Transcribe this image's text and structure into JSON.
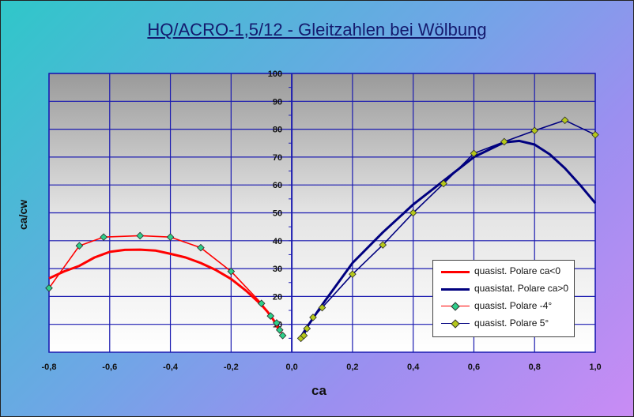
{
  "chart_data": {
    "type": "line",
    "title": "HQ/ACRO-1,5/12 - Gleitzahlen bei Wölbung",
    "xlabel": "ca",
    "ylabel": "ca/cw",
    "xlim": [
      -0.8,
      1.0
    ],
    "ylim": [
      0,
      100
    ],
    "x_ticks": [
      "-0,8",
      "-0,6",
      "-0,4",
      "-0,2",
      "0,0",
      "0,2",
      "0,4",
      "0,6",
      "0,8",
      "1,0"
    ],
    "y_ticks": [
      "10",
      "20",
      "30",
      "40",
      "50",
      "60",
      "70",
      "80",
      "90",
      "100"
    ],
    "grid": true,
    "legend_position": "bottom-right",
    "series": [
      {
        "name": "quasist. Polare ca<0",
        "color": "#ff0000",
        "marker": "none",
        "points": [
          [
            -0.8,
            26.5
          ],
          [
            -0.75,
            29
          ],
          [
            -0.7,
            31
          ],
          [
            -0.65,
            34
          ],
          [
            -0.6,
            36
          ],
          [
            -0.55,
            36.7
          ],
          [
            -0.5,
            36.8
          ],
          [
            -0.45,
            36.5
          ],
          [
            -0.4,
            35.3
          ],
          [
            -0.35,
            34
          ],
          [
            -0.3,
            32
          ],
          [
            -0.25,
            29.5
          ],
          [
            -0.2,
            26.3
          ],
          [
            -0.15,
            22
          ],
          [
            -0.1,
            17
          ],
          [
            -0.08,
            14.5
          ],
          [
            -0.06,
            11.5
          ],
          [
            -0.04,
            7.5
          ]
        ]
      },
      {
        "name": "quasistat. Polare ca>0",
        "color": "#00007f",
        "marker": "none",
        "points": [
          [
            0.03,
            5.5
          ],
          [
            0.05,
            9
          ],
          [
            0.1,
            17
          ],
          [
            0.2,
            32
          ],
          [
            0.3,
            43
          ],
          [
            0.4,
            53
          ],
          [
            0.5,
            61.5
          ],
          [
            0.6,
            70
          ],
          [
            0.7,
            75.3
          ],
          [
            0.75,
            75.8
          ],
          [
            0.8,
            74.5
          ],
          [
            0.85,
            71
          ],
          [
            0.9,
            66
          ],
          [
            0.95,
            60
          ],
          [
            1.0,
            53.5
          ]
        ]
      },
      {
        "name": "quasist. Polare -4°",
        "color": "#ff0000",
        "marker": "diamond",
        "marker_color": "#2ecf8a",
        "points": [
          [
            -0.8,
            23
          ],
          [
            -0.7,
            38.2
          ],
          [
            -0.62,
            41.3
          ],
          [
            -0.5,
            41.8
          ],
          [
            -0.4,
            41.3
          ],
          [
            -0.3,
            37.5
          ],
          [
            -0.2,
            29
          ],
          [
            -0.1,
            17.5
          ],
          [
            -0.07,
            13
          ],
          [
            -0.05,
            10.5
          ],
          [
            -0.04,
            8
          ],
          [
            -0.03,
            6
          ]
        ]
      },
      {
        "name": "quasist. Polare 5°",
        "color": "#00007f",
        "marker": "diamond",
        "marker_color": "#b5c81a",
        "points": [
          [
            0.03,
            5
          ],
          [
            0.04,
            6
          ],
          [
            0.05,
            8.5
          ],
          [
            0.07,
            12.5
          ],
          [
            0.1,
            16
          ],
          [
            0.2,
            28
          ],
          [
            0.3,
            38.5
          ],
          [
            0.4,
            50
          ],
          [
            0.5,
            60.5
          ],
          [
            0.6,
            71.3
          ],
          [
            0.7,
            75.5
          ],
          [
            0.8,
            79.5
          ],
          [
            0.9,
            83.2
          ],
          [
            1.0,
            78
          ]
        ]
      }
    ]
  }
}
